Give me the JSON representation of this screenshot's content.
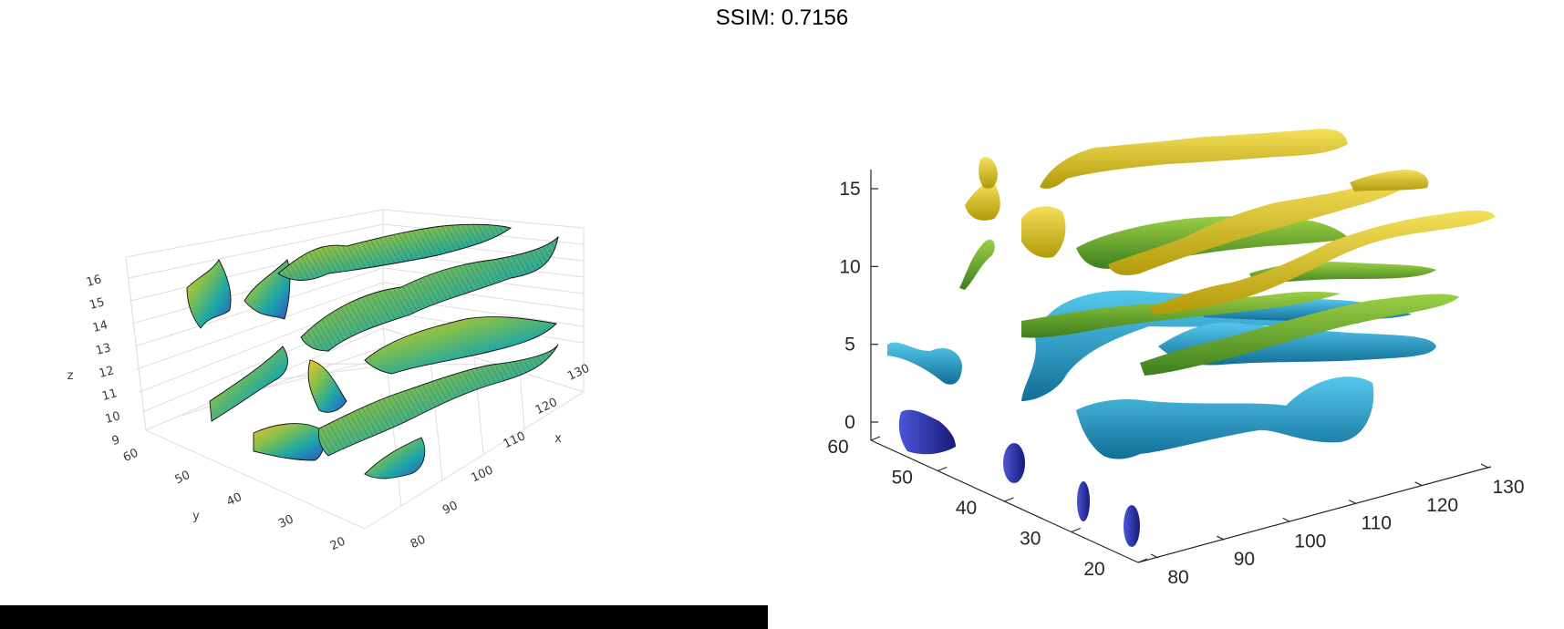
{
  "title": "SSIM: 0.7156",
  "chart_data": [
    {
      "type": "surface3d",
      "style": "isosurface with contour edges, parula colormap",
      "axes": {
        "x": {
          "label": "x",
          "ticks": [
            80,
            90,
            100,
            110,
            120,
            130
          ]
        },
        "y": {
          "label": "y",
          "ticks": [
            20,
            30,
            40,
            50,
            60
          ]
        },
        "z": {
          "label": "z",
          "ticks": [
            9,
            10,
            11,
            12,
            13,
            14,
            15,
            16
          ]
        }
      },
      "grid": true
    },
    {
      "type": "surface3d",
      "style": "shaded isosurface, colored by z",
      "axes": {
        "x": {
          "label": "",
          "ticks": [
            80,
            90,
            100,
            110,
            120,
            130
          ]
        },
        "y": {
          "label": "",
          "ticks": [
            20,
            30,
            40,
            50,
            60
          ]
        },
        "z": {
          "label": "",
          "ticks": [
            0,
            5,
            10,
            15
          ]
        }
      },
      "grid": false
    }
  ],
  "colors": {
    "navy": "#2a2fa8",
    "blue": "#1f95c4",
    "teal": "#1aa6a0",
    "green": "#5aa02c",
    "yellow": "#d8c01a",
    "edge": "#111111"
  }
}
